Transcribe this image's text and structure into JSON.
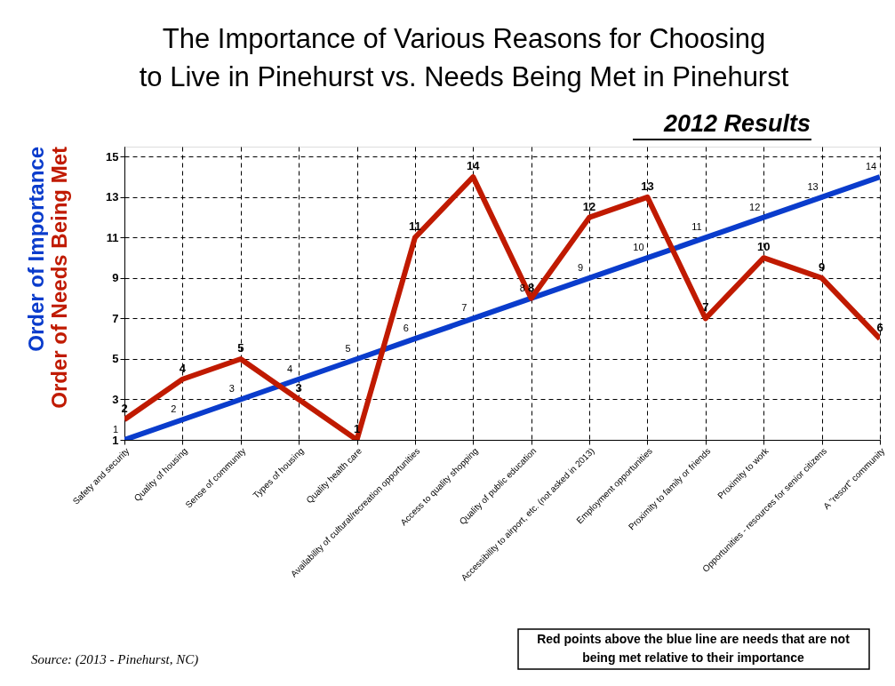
{
  "chart_data": {
    "type": "line",
    "title": [
      "The Importance of Various Reasons for Choosing",
      "to Live in Pinehurst vs. Needs Being Met in Pinehurst"
    ],
    "subtitle": "2012 Results",
    "categories": [
      "Safety and security",
      "Quality of housing",
      "Sense of community",
      "Types of housing",
      "Quality health care",
      "Availability of cultural/recreation opportunities",
      "Access to quality shopping",
      "Quality of public education",
      "Accessibility to airport, etc. (not asked in 2013)",
      "Employment opportunities",
      "Proximity to family or friends",
      "Proximity to work",
      "Opportunities - resources for senior citizens",
      "A \"resort\" community"
    ],
    "series": [
      {
        "name": "Order of Importance",
        "color": "#0a3ccc",
        "values": [
          1,
          2,
          3,
          4,
          5,
          6,
          7,
          8,
          9,
          10,
          11,
          12,
          13,
          14
        ]
      },
      {
        "name": "Order of Needs Being Met",
        "color": "#c01a00",
        "values": [
          2,
          4,
          5,
          3,
          1,
          11,
          14,
          8,
          12,
          13,
          7,
          10,
          9,
          6
        ]
      }
    ],
    "ylim": [
      1,
      15.5
    ],
    "yticks": [
      1,
      3,
      5,
      7,
      9,
      11,
      13,
      15
    ],
    "grid": true,
    "marker": "none",
    "line_style": "solid",
    "data_labels": true,
    "annotations": [
      "Source:  (2013 - Pinehurst, NC)",
      "Red points above the blue line are needs that are not being met relative to their importance"
    ]
  }
}
